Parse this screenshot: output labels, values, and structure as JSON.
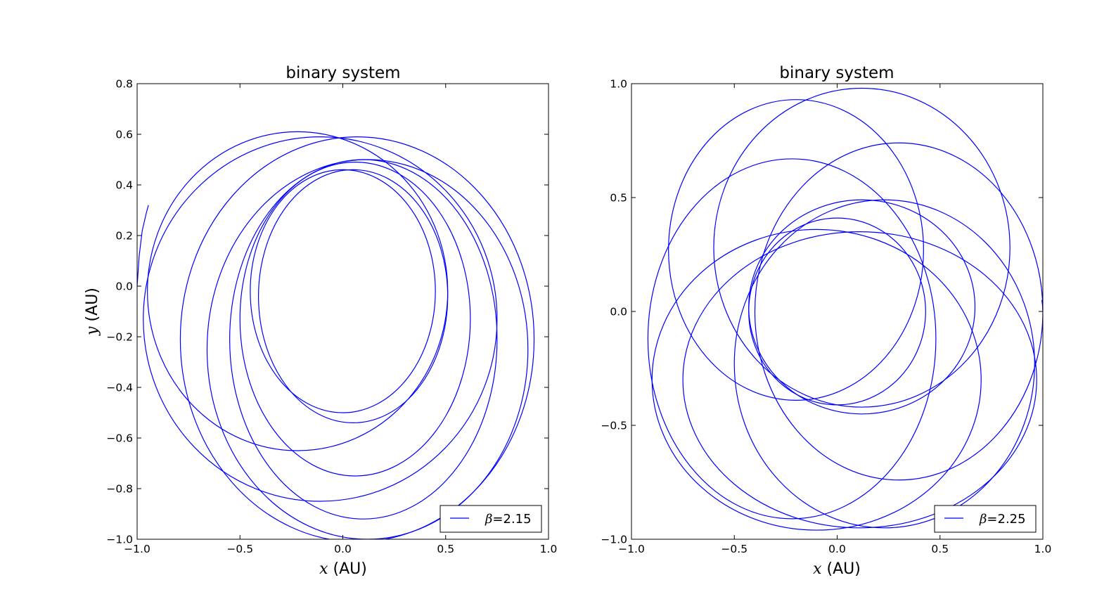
{
  "chart_data": [
    {
      "type": "line",
      "title": "binary system",
      "xlabel_var": "x",
      "xlabel_unit": "(AU)",
      "ylabel_var": "y",
      "ylabel_unit": "(AU)",
      "xlim": [
        -1.0,
        1.0
      ],
      "ylim": [
        -1.0,
        0.8
      ],
      "xticks": [
        "−1.0",
        "−0.5",
        "0.0",
        "0.5",
        "1.0"
      ],
      "xtick_values": [
        -1.0,
        -0.5,
        0.0,
        0.5,
        1.0
      ],
      "yticks": [
        "−1.0",
        "−0.8",
        "−0.6",
        "−0.4",
        "−0.2",
        "0.0",
        "0.2",
        "0.4",
        "0.6",
        "0.8"
      ],
      "ytick_values": [
        -1.0,
        -0.8,
        -0.6,
        -0.4,
        -0.2,
        0.0,
        0.2,
        0.4,
        0.6,
        0.8
      ],
      "legend_symbol": "β",
      "legend_value": "=2.15",
      "legend_position": "lower-right",
      "line_color": "#0000ff",
      "grid": false,
      "orbits": [
        {
          "cx": 0.0,
          "cy": -0.02,
          "rx": 0.45,
          "ry": 0.48,
          "rot": 0
        },
        {
          "cx": 0.05,
          "cy": -0.04,
          "rx": 0.46,
          "ry": 0.5,
          "rot": 0
        },
        {
          "cx": 0.06,
          "cy": -0.13,
          "rx": 0.56,
          "ry": 0.62,
          "rot": 0
        },
        {
          "cx": 0.1,
          "cy": -0.21,
          "rx": 0.65,
          "ry": 0.71,
          "rot": 0
        },
        {
          "cx": 0.12,
          "cy": -0.25,
          "rx": 0.78,
          "ry": 0.75,
          "rot": 0
        },
        {
          "cx": 0.07,
          "cy": -0.21,
          "rx": 0.86,
          "ry": 0.8,
          "rot": 0
        },
        {
          "cx": -0.11,
          "cy": -0.13,
          "rx": 0.86,
          "ry": 0.72,
          "rot": 0
        },
        {
          "cx": -0.22,
          "cy": -0.02,
          "rx": 0.73,
          "ry": 0.63,
          "rot": 0
        }
      ],
      "tail": {
        "x": [
          -1.0,
          -0.99,
          -0.975,
          -0.955,
          -0.945
        ],
        "y": [
          0.0,
          0.12,
          0.22,
          0.29,
          0.32
        ]
      }
    },
    {
      "type": "line",
      "title": "binary system",
      "xlabel_var": "x",
      "xlabel_unit": "(AU)",
      "xlim": [
        -1.0,
        1.0
      ],
      "ylim": [
        -1.0,
        1.0
      ],
      "xticks": [
        "−1.0",
        "−0.5",
        "0.0",
        "0.5",
        "1.0"
      ],
      "xtick_values": [
        -1.0,
        -0.5,
        0.0,
        0.5,
        1.0
      ],
      "yticks": [
        "−1.0",
        "−0.5",
        "0.0",
        "0.5",
        "1.0"
      ],
      "ytick_values": [
        -1.0,
        -0.5,
        0.0,
        0.5,
        1.0
      ],
      "legend_symbol": "β",
      "legend_value": "=2.25",
      "legend_position": "lower-right",
      "line_color": "#0000ff",
      "grid": false,
      "orbits": [
        {
          "cx": 0.0,
          "cy": 0.0,
          "rx": 0.43,
          "ry": 0.41,
          "rot": 0
        },
        {
          "cx": 0.12,
          "cy": 0.02,
          "rx": 0.55,
          "ry": 0.47,
          "rot": 0
        },
        {
          "cx": 0.23,
          "cy": -0.23,
          "rx": 0.73,
          "ry": 0.72,
          "rot": 0
        },
        {
          "cx": 0.11,
          "cy": -0.3,
          "rx": 0.86,
          "ry": 0.65,
          "rot": 0
        },
        {
          "cx": -0.1,
          "cy": -0.3,
          "rx": 0.8,
          "ry": 0.66,
          "rot": 0
        },
        {
          "cx": -0.22,
          "cy": -0.12,
          "rx": 0.7,
          "ry": 0.79,
          "rot": 0
        },
        {
          "cx": -0.2,
          "cy": 0.27,
          "rx": 0.62,
          "ry": 0.66,
          "rot": 0
        },
        {
          "cx": 0.12,
          "cy": 0.28,
          "rx": 0.72,
          "ry": 0.7,
          "rot": 0
        },
        {
          "cx": 0.3,
          "cy": 0.0,
          "rx": 0.7,
          "ry": 0.74,
          "rot": 0
        }
      ],
      "tail": {
        "x": [
          1.0,
          0.998,
          0.995
        ],
        "y": [
          0.0,
          0.03,
          0.05
        ]
      }
    }
  ]
}
